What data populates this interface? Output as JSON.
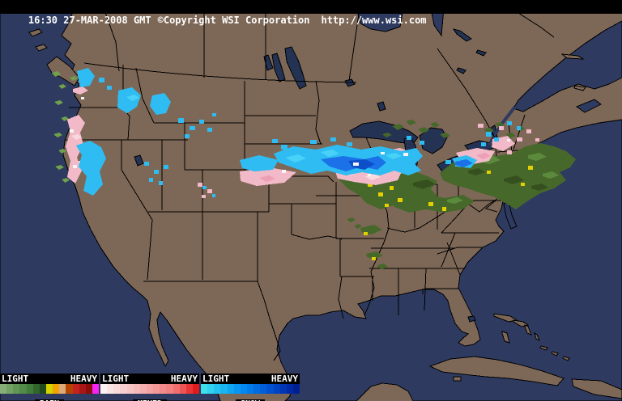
{
  "header": {
    "time": "16:30 27-MAR-2008 GMT",
    "copyright": "©Copyright WSI Corporation",
    "url": "http://www.wsi.com"
  },
  "legend": {
    "sections": [
      {
        "label": "RAIN",
        "light": "LIGHT",
        "heavy": "HEAVY",
        "colors": [
          "#86AE76",
          "#74A263",
          "#629656",
          "#528A48",
          "#427C3A",
          "#32662C",
          "#1F4A1A",
          "#D6D300",
          "#EFA400",
          "#DDA97B",
          "#B44500",
          "#C62121",
          "#A91616",
          "#8D0D0D",
          "#F524F0"
        ]
      },
      {
        "label": "MIXED",
        "light": "LIGHT",
        "heavy": "HEAVY",
        "colors": [
          "#FBF1F1",
          "#FAE5E5",
          "#F9DADA",
          "#F8CFCF",
          "#F7C4C4",
          "#F6B9B9",
          "#F5AEAE",
          "#F4A3A3",
          "#F39797",
          "#F28C8C",
          "#F18080",
          "#EF6F6F",
          "#ED5555",
          "#E83636",
          "#E31A1A"
        ]
      },
      {
        "label": "SNOW",
        "light": "LIGHT",
        "heavy": "HEAVY",
        "colors": [
          "#3FE0EE",
          "#30D2EE",
          "#24C3EF",
          "#1AB4F0",
          "#10A5F0",
          "#0896F0",
          "#0388EE",
          "#007AE8",
          "#006CE0",
          "#005ED8",
          "#0051CE",
          "#0043C2",
          "#0036B4",
          "#002AA4",
          "#002092"
        ]
      }
    ]
  },
  "map": {
    "colors": {
      "topbar_bg": "#000000",
      "topbar_text": "#FFFFFF",
      "ocean": "#2E3A5F",
      "lake": "#243253",
      "land": "#7D6756",
      "border": "#000000",
      "rain_pale": "#6FA04B",
      "rain_light": "#5C8A3C",
      "rain": "#47682B",
      "rain_dark": "#35501E",
      "rain_heavy": "#E2D000",
      "mixed": "#F2B9C8",
      "mixed_light": "#F8DADE",
      "mixed_deep": "#ED9FB6",
      "snow": "#2FBCF2",
      "snow_bright": "#49D2F7",
      "snow_heavy": "#1B72E8",
      "snow_intense": "#0D4FC8",
      "bright_core": "#F7F4F4"
    }
  }
}
